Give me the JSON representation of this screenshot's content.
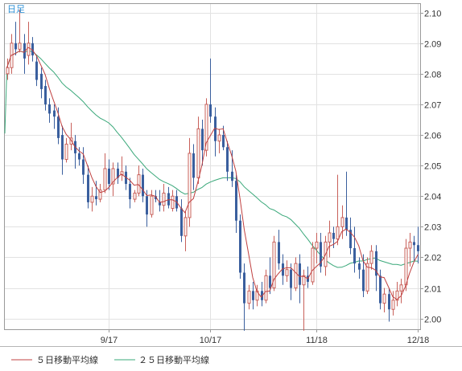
{
  "chart_data": {
    "type": "candlestick",
    "timeframe_badge": "日足",
    "ylim": [
      1.9965,
      2.1028
    ],
    "y_ticks": [
      "2.00",
      "2.01",
      "2.02",
      "2.03",
      "2.04",
      "2.05",
      "2.06",
      "2.07",
      "2.08",
      "2.09",
      "2.10"
    ],
    "x_ticks": [
      "9/17",
      "10/17",
      "11/18",
      "12/18"
    ],
    "grid": true,
    "legend_position": "bottom",
    "colors": {
      "up": "#c8605a",
      "down": "#3a5f9e",
      "ma5": "#c04040",
      "ma25": "#3aa87a",
      "badge": "#2a8fd6"
    },
    "series": [
      {
        "name": "５日移動平均線",
        "color": "#c04040"
      },
      {
        "name": "２５日移動平均線",
        "color": "#3aa87a"
      }
    ],
    "candles": [
      {
        "o": 2.08,
        "h": 2.085,
        "l": 2.078,
        "c": 2.082
      },
      {
        "o": 2.082,
        "h": 2.093,
        "l": 2.08,
        "c": 2.09
      },
      {
        "o": 2.09,
        "h": 2.097,
        "l": 2.086,
        "c": 2.088
      },
      {
        "o": 2.088,
        "h": 2.101,
        "l": 2.087,
        "c": 2.09
      },
      {
        "o": 2.09,
        "h": 2.093,
        "l": 2.08,
        "c": 2.085
      },
      {
        "o": 2.086,
        "h": 2.097,
        "l": 2.083,
        "c": 2.09
      },
      {
        "o": 2.09,
        "h": 2.092,
        "l": 2.084,
        "c": 2.086
      },
      {
        "o": 2.084,
        "h": 2.086,
        "l": 2.076,
        "c": 2.078
      },
      {
        "o": 2.08,
        "h": 2.082,
        "l": 2.072,
        "c": 2.075
      },
      {
        "o": 2.076,
        "h": 2.078,
        "l": 2.068,
        "c": 2.07
      },
      {
        "o": 2.07,
        "h": 2.072,
        "l": 2.064,
        "c": 2.067
      },
      {
        "o": 2.068,
        "h": 2.07,
        "l": 2.062,
        "c": 2.066
      },
      {
        "o": 2.066,
        "h": 2.069,
        "l": 2.057,
        "c": 2.059
      },
      {
        "o": 2.06,
        "h": 2.063,
        "l": 2.047,
        "c": 2.052
      },
      {
        "o": 2.052,
        "h": 2.059,
        "l": 2.051,
        "c": 2.057
      },
      {
        "o": 2.057,
        "h": 2.064,
        "l": 2.055,
        "c": 2.059
      },
      {
        "o": 2.058,
        "h": 2.06,
        "l": 2.049,
        "c": 2.054
      },
      {
        "o": 2.054,
        "h": 2.056,
        "l": 2.05,
        "c": 2.052
      },
      {
        "o": 2.052,
        "h": 2.056,
        "l": 2.044,
        "c": 2.047
      },
      {
        "o": 2.047,
        "h": 2.05,
        "l": 2.036,
        "c": 2.038
      },
      {
        "o": 2.038,
        "h": 2.043,
        "l": 2.035,
        "c": 2.04
      },
      {
        "o": 2.04,
        "h": 2.045,
        "l": 2.037,
        "c": 2.039
      },
      {
        "o": 2.039,
        "h": 2.044,
        "l": 2.038,
        "c": 2.042
      },
      {
        "o": 2.042,
        "h": 2.054,
        "l": 2.041,
        "c": 2.049
      },
      {
        "o": 2.049,
        "h": 2.052,
        "l": 2.042,
        "c": 2.044
      },
      {
        "o": 2.044,
        "h": 2.051,
        "l": 2.04,
        "c": 2.049
      },
      {
        "o": 2.049,
        "h": 2.051,
        "l": 2.044,
        "c": 2.046
      },
      {
        "o": 2.047,
        "h": 2.053,
        "l": 2.045,
        "c": 2.048
      },
      {
        "o": 2.048,
        "h": 2.05,
        "l": 2.042,
        "c": 2.044
      },
      {
        "o": 2.044,
        "h": 2.046,
        "l": 2.036,
        "c": 2.039
      },
      {
        "o": 2.039,
        "h": 2.042,
        "l": 2.038,
        "c": 2.041
      },
      {
        "o": 2.041,
        "h": 2.05,
        "l": 2.04,
        "c": 2.047
      },
      {
        "o": 2.047,
        "h": 2.049,
        "l": 2.038,
        "c": 2.04
      },
      {
        "o": 2.04,
        "h": 2.042,
        "l": 2.03,
        "c": 2.034
      },
      {
        "o": 2.034,
        "h": 2.042,
        "l": 2.033,
        "c": 2.04
      },
      {
        "o": 2.04,
        "h": 2.042,
        "l": 2.038,
        "c": 2.039
      },
      {
        "o": 2.038,
        "h": 2.042,
        "l": 2.035,
        "c": 2.037
      },
      {
        "o": 2.037,
        "h": 2.044,
        "l": 2.035,
        "c": 2.041
      },
      {
        "o": 2.041,
        "h": 2.043,
        "l": 2.036,
        "c": 2.037
      },
      {
        "o": 2.036,
        "h": 2.042,
        "l": 2.035,
        "c": 2.04
      },
      {
        "o": 2.04,
        "h": 2.042,
        "l": 2.035,
        "c": 2.036
      },
      {
        "o": 2.036,
        "h": 2.039,
        "l": 2.025,
        "c": 2.027
      },
      {
        "o": 2.027,
        "h": 2.035,
        "l": 2.022,
        "c": 2.033
      },
      {
        "o": 2.033,
        "h": 2.059,
        "l": 2.03,
        "c": 2.054
      },
      {
        "o": 2.054,
        "h": 2.057,
        "l": 2.042,
        "c": 2.046
      },
      {
        "o": 2.046,
        "h": 2.066,
        "l": 2.044,
        "c": 2.062
      },
      {
        "o": 2.062,
        "h": 2.065,
        "l": 2.05,
        "c": 2.055
      },
      {
        "o": 2.055,
        "h": 2.072,
        "l": 2.053,
        "c": 2.07
      },
      {
        "o": 2.07,
        "h": 2.085,
        "l": 2.064,
        "c": 2.066
      },
      {
        "o": 2.066,
        "h": 2.069,
        "l": 2.053,
        "c": 2.058
      },
      {
        "o": 2.058,
        "h": 2.062,
        "l": 2.054,
        "c": 2.06
      },
      {
        "o": 2.06,
        "h": 2.063,
        "l": 2.055,
        "c": 2.056
      },
      {
        "o": 2.056,
        "h": 2.058,
        "l": 2.045,
        "c": 2.048
      },
      {
        "o": 2.048,
        "h": 2.055,
        "l": 2.043,
        "c": 2.045
      },
      {
        "o": 2.045,
        "h": 2.047,
        "l": 2.028,
        "c": 2.032
      },
      {
        "o": 2.032,
        "h": 2.034,
        "l": 2.013,
        "c": 2.015
      },
      {
        "o": 2.015,
        "h": 2.018,
        "l": 1.996,
        "c": 2.005
      },
      {
        "o": 2.005,
        "h": 2.011,
        "l": 2.003,
        "c": 2.009
      },
      {
        "o": 2.009,
        "h": 2.012,
        "l": 2.003,
        "c": 2.006
      },
      {
        "o": 2.006,
        "h": 2.011,
        "l": 2.004,
        "c": 2.009
      },
      {
        "o": 2.009,
        "h": 2.012,
        "l": 2.004,
        "c": 2.006
      },
      {
        "o": 2.006,
        "h": 2.016,
        "l": 2.005,
        "c": 2.014
      },
      {
        "o": 2.014,
        "h": 2.02,
        "l": 2.008,
        "c": 2.01
      },
      {
        "o": 2.01,
        "h": 2.027,
        "l": 2.009,
        "c": 2.025
      },
      {
        "o": 2.025,
        "h": 2.029,
        "l": 2.016,
        "c": 2.018
      },
      {
        "o": 2.018,
        "h": 2.021,
        "l": 2.011,
        "c": 2.014
      },
      {
        "o": 2.014,
        "h": 2.019,
        "l": 2.012,
        "c": 2.016
      },
      {
        "o": 2.016,
        "h": 2.018,
        "l": 2.006,
        "c": 2.01
      },
      {
        "o": 2.01,
        "h": 2.02,
        "l": 2.009,
        "c": 2.018
      },
      {
        "o": 2.018,
        "h": 2.021,
        "l": 2.005,
        "c": 2.011
      },
      {
        "o": 2.011,
        "h": 2.016,
        "l": 1.996,
        "c": 2.014
      },
      {
        "o": 2.014,
        "h": 2.017,
        "l": 2.01,
        "c": 2.012
      },
      {
        "o": 2.012,
        "h": 2.025,
        "l": 2.011,
        "c": 2.023
      },
      {
        "o": 2.023,
        "h": 2.028,
        "l": 2.018,
        "c": 2.025
      },
      {
        "o": 2.025,
        "h": 2.028,
        "l": 2.015,
        "c": 2.017
      },
      {
        "o": 2.017,
        "h": 2.027,
        "l": 2.014,
        "c": 2.025
      },
      {
        "o": 2.025,
        "h": 2.032,
        "l": 2.02,
        "c": 2.028
      },
      {
        "o": 2.028,
        "h": 2.03,
        "l": 2.023,
        "c": 2.026
      },
      {
        "o": 2.026,
        "h": 2.047,
        "l": 2.024,
        "c": 2.03
      },
      {
        "o": 2.03,
        "h": 2.037,
        "l": 2.026,
        "c": 2.033
      },
      {
        "o": 2.033,
        "h": 2.048,
        "l": 2.027,
        "c": 2.029
      },
      {
        "o": 2.029,
        "h": 2.033,
        "l": 2.021,
        "c": 2.023
      },
      {
        "o": 2.023,
        "h": 2.03,
        "l": 2.015,
        "c": 2.018
      },
      {
        "o": 2.018,
        "h": 2.02,
        "l": 2.013,
        "c": 2.016
      },
      {
        "o": 2.016,
        "h": 2.021,
        "l": 2.007,
        "c": 2.009
      },
      {
        "o": 2.009,
        "h": 2.02,
        "l": 2.008,
        "c": 2.018
      },
      {
        "o": 2.018,
        "h": 2.024,
        "l": 2.016,
        "c": 2.022
      },
      {
        "o": 2.022,
        "h": 2.024,
        "l": 2.009,
        "c": 2.014
      },
      {
        "o": 2.014,
        "h": 2.016,
        "l": 2.003,
        "c": 2.005
      },
      {
        "o": 2.005,
        "h": 2.01,
        "l": 2.002,
        "c": 2.008
      },
      {
        "o": 2.008,
        "h": 2.01,
        "l": 1.999,
        "c": 2.003
      },
      {
        "o": 2.003,
        "h": 2.009,
        "l": 2.001,
        "c": 2.006
      },
      {
        "o": 2.006,
        "h": 2.012,
        "l": 2.004,
        "c": 2.009
      },
      {
        "o": 2.009,
        "h": 2.013,
        "l": 2.005,
        "c": 2.011
      },
      {
        "o": 2.011,
        "h": 2.026,
        "l": 2.009,
        "c": 2.023
      },
      {
        "o": 2.023,
        "h": 2.028,
        "l": 2.017,
        "c": 2.025
      },
      {
        "o": 2.025,
        "h": 2.027,
        "l": 2.019,
        "c": 2.024
      },
      {
        "o": 2.024,
        "h": 2.03,
        "l": 2.018,
        "c": 2.022
      }
    ]
  },
  "legend": {
    "ma5_label": "５日移動平均線",
    "ma25_label": "２５日移動平均線"
  }
}
